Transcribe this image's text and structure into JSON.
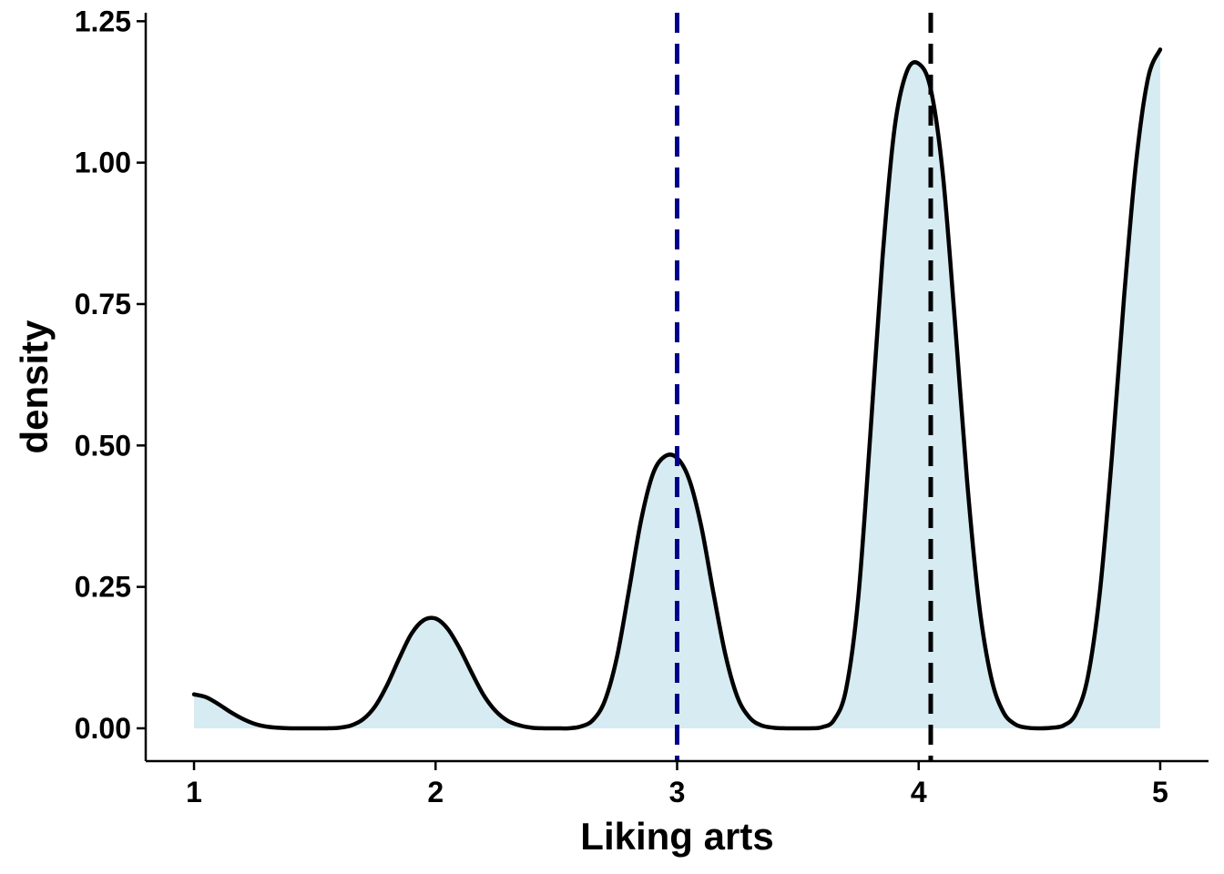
{
  "chart_data": {
    "type": "area",
    "title": "",
    "xlabel": "Liking arts",
    "ylabel": "density",
    "xlim": [
      0.8,
      5.2
    ],
    "ylim": [
      -0.058,
      1.265
    ],
    "x_ticks": [
      1,
      2,
      3,
      4,
      5
    ],
    "y_ticks": [
      0.0,
      0.25,
      0.5,
      0.75,
      1.0,
      1.25
    ],
    "y_tick_labels": [
      "0.00",
      "0.25",
      "0.50",
      "0.75",
      "1.00",
      "1.25"
    ],
    "grid": false,
    "legend": "none",
    "series": [
      {
        "x": [
          1.0,
          1.05,
          1.1,
          1.15,
          1.2,
          1.25,
          1.3,
          1.35,
          1.4,
          1.45,
          1.5,
          1.55,
          1.6,
          1.65,
          1.7,
          1.75,
          1.8,
          1.85,
          1.9,
          1.95,
          2.0,
          2.05,
          2.1,
          2.15,
          2.2,
          2.25,
          2.3,
          2.35,
          2.4,
          2.45,
          2.5,
          2.55,
          2.6,
          2.65,
          2.7,
          2.75,
          2.8,
          2.85,
          2.9,
          2.95,
          3.0,
          3.05,
          3.1,
          3.15,
          3.2,
          3.25,
          3.3,
          3.35,
          3.4,
          3.45,
          3.5,
          3.55,
          3.6,
          3.65,
          3.7,
          3.75,
          3.8,
          3.85,
          3.9,
          3.95,
          4.0,
          4.05,
          4.1,
          4.15,
          4.2,
          4.25,
          4.3,
          4.35,
          4.4,
          4.45,
          4.5,
          4.55,
          4.6,
          4.65,
          4.7,
          4.75,
          4.8,
          4.85,
          4.9,
          4.95,
          5.0
        ],
        "y": [
          0.06,
          0.055,
          0.043,
          0.029,
          0.017,
          0.008,
          0.003,
          0.001,
          0.0,
          0.0,
          0.0,
          0.0,
          0.001,
          0.005,
          0.016,
          0.039,
          0.077,
          0.124,
          0.167,
          0.191,
          0.194,
          0.176,
          0.141,
          0.098,
          0.058,
          0.03,
          0.013,
          0.005,
          0.001,
          0.0,
          0.0,
          0.0,
          0.003,
          0.014,
          0.048,
          0.124,
          0.242,
          0.366,
          0.45,
          0.481,
          0.478,
          0.44,
          0.357,
          0.24,
          0.13,
          0.055,
          0.019,
          0.005,
          0.001,
          0.0,
          0.0,
          0.0,
          0.002,
          0.015,
          0.07,
          0.231,
          0.52,
          0.83,
          1.06,
          1.16,
          1.175,
          1.13,
          0.98,
          0.72,
          0.44,
          0.22,
          0.09,
          0.029,
          0.007,
          0.001,
          0.0,
          0.001,
          0.005,
          0.025,
          0.09,
          0.24,
          0.48,
          0.76,
          1.0,
          1.15,
          1.2
        ]
      }
    ],
    "vlines": [
      {
        "x": 3.0,
        "color": "#00008B",
        "style": "dashed"
      },
      {
        "x": 4.05,
        "color": "#000000",
        "style": "dashed"
      }
    ],
    "fill_color": "#D6EBF2",
    "line_color": "#000000"
  }
}
